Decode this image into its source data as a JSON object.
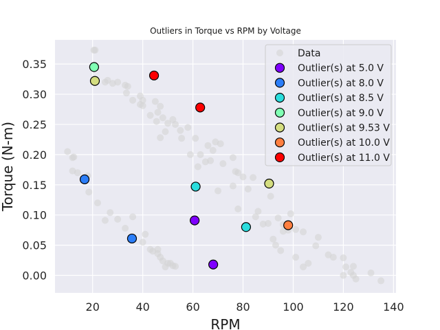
{
  "chart_data": {
    "type": "scatter",
    "title": "Outliers in Torque vs RPM by Voltage",
    "xlabel": "RPM",
    "ylabel": "Torque (N-m)",
    "xlim": [
      5,
      141
    ],
    "ylim": [
      -0.029,
      0.39
    ],
    "x_ticks": [
      20,
      40,
      60,
      80,
      100,
      120,
      140
    ],
    "y_ticks": [
      0.0,
      0.05,
      0.1,
      0.15,
      0.2,
      0.25,
      0.3,
      0.35
    ],
    "grid": true,
    "legend_position": "top-right",
    "background_color": "#eaeaf2",
    "data_series": {
      "name": "Data",
      "color": "#d3d3d3",
      "points": [
        [
          20.5,
          0.373
        ],
        [
          21.0,
          0.373
        ],
        [
          25.0,
          0.32
        ],
        [
          26.0,
          0.323
        ],
        [
          28.0,
          0.318
        ],
        [
          30.0,
          0.32
        ],
        [
          33.0,
          0.315
        ],
        [
          34.0,
          0.313
        ],
        [
          33.5,
          0.302
        ],
        [
          36.0,
          0.29
        ],
        [
          39.0,
          0.297
        ],
        [
          40.0,
          0.29
        ],
        [
          39.0,
          0.283
        ],
        [
          40.0,
          0.281
        ],
        [
          43.0,
          0.265
        ],
        [
          45.0,
          0.288
        ],
        [
          46.0,
          0.27
        ],
        [
          47.0,
          0.28
        ],
        [
          45.5,
          0.255
        ],
        [
          48.0,
          0.261
        ],
        [
          50.0,
          0.252
        ],
        [
          52.0,
          0.258
        ],
        [
          53.0,
          0.25
        ],
        [
          49.0,
          0.238
        ],
        [
          47.0,
          0.228
        ],
        [
          55.0,
          0.24
        ],
        [
          55.5,
          0.227
        ],
        [
          58.0,
          0.245
        ],
        [
          61.0,
          0.227
        ],
        [
          63.0,
          0.2
        ],
        [
          66.0,
          0.215
        ],
        [
          68.0,
          0.207
        ],
        [
          69.0,
          0.221
        ],
        [
          71.0,
          0.218
        ],
        [
          65.0,
          0.188
        ],
        [
          67.0,
          0.19
        ],
        [
          72.0,
          0.185
        ],
        [
          76.0,
          0.195
        ],
        [
          77.0,
          0.172
        ],
        [
          78.0,
          0.17
        ],
        [
          62.0,
          0.18
        ],
        [
          59.0,
          0.2
        ],
        [
          80.0,
          0.163
        ],
        [
          82.0,
          0.143
        ],
        [
          84.0,
          0.162
        ],
        [
          76.0,
          0.148
        ],
        [
          78.0,
          0.11
        ],
        [
          70.0,
          0.14
        ],
        [
          86.0,
          0.106
        ],
        [
          85.0,
          0.097
        ],
        [
          88.0,
          0.085
        ],
        [
          90.0,
          0.086
        ],
        [
          91.0,
          0.131
        ],
        [
          94.0,
          0.095
        ],
        [
          96.0,
          0.084
        ],
        [
          96.0,
          0.073
        ],
        [
          98.0,
          0.075
        ],
        [
          99.0,
          0.102
        ],
        [
          101.0,
          0.076
        ],
        [
          104.0,
          0.072
        ],
        [
          109.0,
          0.049
        ],
        [
          110.0,
          0.063
        ],
        [
          92.0,
          0.06
        ],
        [
          93.0,
          0.05
        ],
        [
          95.0,
          0.041
        ],
        [
          101.0,
          0.03
        ],
        [
          104.0,
          0.014
        ],
        [
          106.0,
          0.02
        ],
        [
          114.0,
          0.034
        ],
        [
          116.0,
          0.03
        ],
        [
          120.0,
          0.029
        ],
        [
          120.0,
          0.0
        ],
        [
          121.0,
          0.014
        ],
        [
          123.0,
          0.005
        ],
        [
          124.0,
          0.0
        ],
        [
          124.0,
          0.015
        ],
        [
          125.0,
          -0.006
        ],
        [
          131.0,
          0.004
        ],
        [
          135.0,
          -0.009
        ],
        [
          10.0,
          0.205
        ],
        [
          12.0,
          0.195
        ],
        [
          12.5,
          0.196
        ],
        [
          12.0,
          0.173
        ],
        [
          14.0,
          0.17
        ],
        [
          18.0,
          0.165
        ],
        [
          18.5,
          0.138
        ],
        [
          22.0,
          0.12
        ],
        [
          25.0,
          0.091
        ],
        [
          27.0,
          0.104
        ],
        [
          30.0,
          0.093
        ],
        [
          33.0,
          0.078
        ],
        [
          36.0,
          0.097
        ],
        [
          40.0,
          0.055
        ],
        [
          41.0,
          0.068
        ],
        [
          43.0,
          0.043
        ],
        [
          44.0,
          0.04
        ],
        [
          46.0,
          0.036
        ],
        [
          47.0,
          0.03
        ],
        [
          48.0,
          0.024
        ],
        [
          49.0,
          0.014
        ],
        [
          50.0,
          0.02
        ],
        [
          51.0,
          0.02
        ],
        [
          52.0,
          0.016
        ],
        [
          53.0,
          0.015
        ],
        [
          46.0,
          0.043
        ]
      ]
    },
    "series": [
      {
        "name": "Outlier(s) at 5.0 V",
        "color": "#7f00ff",
        "points": [
          [
            60.7,
            0.091
          ],
          [
            68.1,
            0.018
          ]
        ]
      },
      {
        "name": "Outlier(s) at 8.0 V",
        "color": "#2c7ef8",
        "points": [
          [
            16.8,
            0.159
          ],
          [
            35.7,
            0.061
          ]
        ]
      },
      {
        "name": "Outlier(s) at 8.5 V",
        "color": "#2adddd",
        "points": [
          [
            61.1,
            0.147
          ],
          [
            81.2,
            0.08
          ]
        ]
      },
      {
        "name": "Outlier(s) at 9.0 V",
        "color": "#80ffb4",
        "points": [
          [
            20.6,
            0.345
          ]
        ]
      },
      {
        "name": "Outlier(s) at 9.53 V",
        "color": "#d4dd80",
        "points": [
          [
            20.9,
            0.322
          ],
          [
            90.4,
            0.152
          ]
        ]
      },
      {
        "name": "Outlier(s) at 10.0 V",
        "color": "#ff7f40",
        "points": [
          [
            98.0,
            0.083
          ]
        ]
      },
      {
        "name": "Outlier(s) at 11.0 V",
        "color": "#ff0000",
        "points": [
          [
            44.5,
            0.331
          ],
          [
            62.9,
            0.278
          ]
        ]
      }
    ]
  }
}
